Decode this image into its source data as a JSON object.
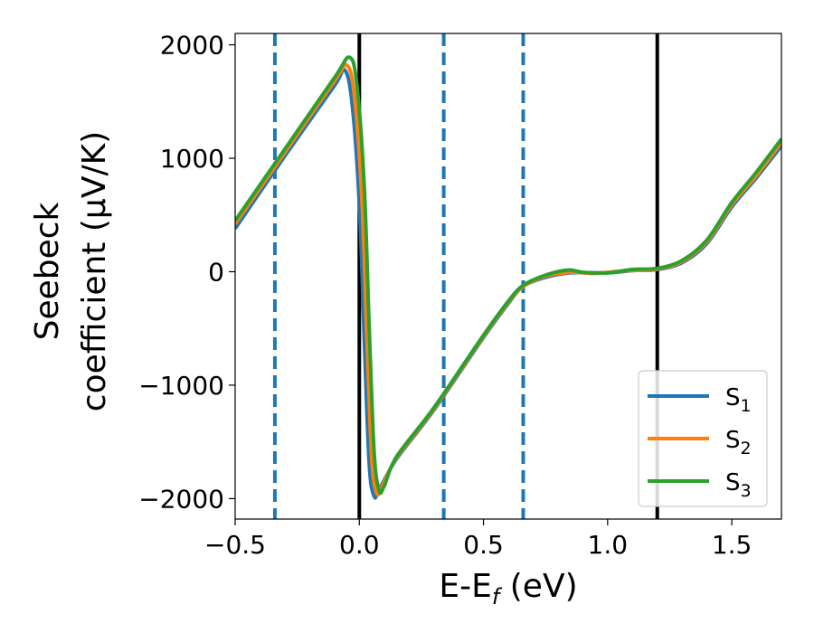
{
  "chart_data": {
    "type": "line",
    "title": "",
    "xlabel": {
      "main": "E-E",
      "sub": "f",
      "tail": " (eV)"
    },
    "ylabel": {
      "line1": "Seebeck",
      "line2": "coefficient  (μV/K)"
    },
    "xlim": [
      -0.5,
      1.7
    ],
    "ylim": [
      -2180,
      2100
    ],
    "xticks": [
      -0.5,
      0.0,
      0.5,
      1.0,
      1.5
    ],
    "xtick_labels": [
      "−0.5",
      "0.0",
      "0.5",
      "1.0",
      "1.5"
    ],
    "yticks": [
      -2000,
      -1000,
      0,
      1000,
      2000
    ],
    "ytick_labels": [
      "−2000",
      "−1000",
      "0",
      "1000",
      "2000"
    ],
    "grid": false,
    "legend_position": "bottom-right",
    "vertical_lines": [
      {
        "x": 0.0,
        "style": "solid",
        "color": "#000000"
      },
      {
        "x": 1.2,
        "style": "solid",
        "color": "#000000"
      },
      {
        "x": -0.34,
        "style": "dashed",
        "color": "#1f77b4"
      },
      {
        "x": 0.34,
        "style": "dashed",
        "color": "#1f77b4"
      },
      {
        "x": 0.66,
        "style": "dashed",
        "color": "#1f77b4"
      }
    ],
    "series": [
      {
        "name": "S",
        "sub": "1",
        "color": "#1f77b4",
        "x": [
          -0.5,
          -0.3,
          -0.1,
          -0.06,
          -0.03,
          0.0,
          0.02,
          0.04,
          0.06,
          0.08,
          0.15,
          0.3,
          0.5,
          0.6,
          0.66,
          0.75,
          0.85,
          1.0,
          1.1,
          1.2,
          1.3,
          1.4,
          1.5,
          1.6,
          1.7
        ],
        "values": [
          380,
          1020,
          1640,
          1780,
          1500,
          600,
          -600,
          -1700,
          -1980,
          -1920,
          -1650,
          -1220,
          -580,
          -280,
          -130,
          -50,
          -10,
          -10,
          10,
          20,
          80,
          250,
          570,
          830,
          1110
        ]
      },
      {
        "name": "S",
        "sub": "2",
        "color": "#ff7f0e",
        "x": [
          -0.5,
          -0.3,
          -0.1,
          -0.05,
          -0.02,
          0.01,
          0.03,
          0.05,
          0.07,
          0.09,
          0.15,
          0.3,
          0.5,
          0.6,
          0.66,
          0.75,
          0.85,
          0.95,
          1.05,
          1.2,
          1.3,
          1.4,
          1.5,
          1.6,
          1.7
        ],
        "values": [
          420,
          1050,
          1680,
          1820,
          1550,
          650,
          -550,
          -1650,
          -1950,
          -1900,
          -1640,
          -1210,
          -570,
          -270,
          -130,
          -40,
          -5,
          -15,
          5,
          25,
          90,
          265,
          590,
          850,
          1140
        ]
      },
      {
        "name": "S",
        "sub": "3",
        "color": "#2ca02c",
        "x": [
          -0.5,
          -0.3,
          -0.1,
          -0.04,
          -0.01,
          0.02,
          0.04,
          0.06,
          0.08,
          0.1,
          0.15,
          0.3,
          0.5,
          0.6,
          0.66,
          0.75,
          0.84,
          0.9,
          1.0,
          1.1,
          1.2,
          1.3,
          1.4,
          1.5,
          1.6,
          1.7
        ],
        "values": [
          450,
          1080,
          1710,
          1890,
          1650,
          750,
          -500,
          -1600,
          -1930,
          -1890,
          -1630,
          -1200,
          -560,
          -260,
          -120,
          -30,
          15,
          -5,
          -10,
          20,
          30,
          100,
          280,
          610,
          880,
          1170
        ]
      }
    ]
  }
}
